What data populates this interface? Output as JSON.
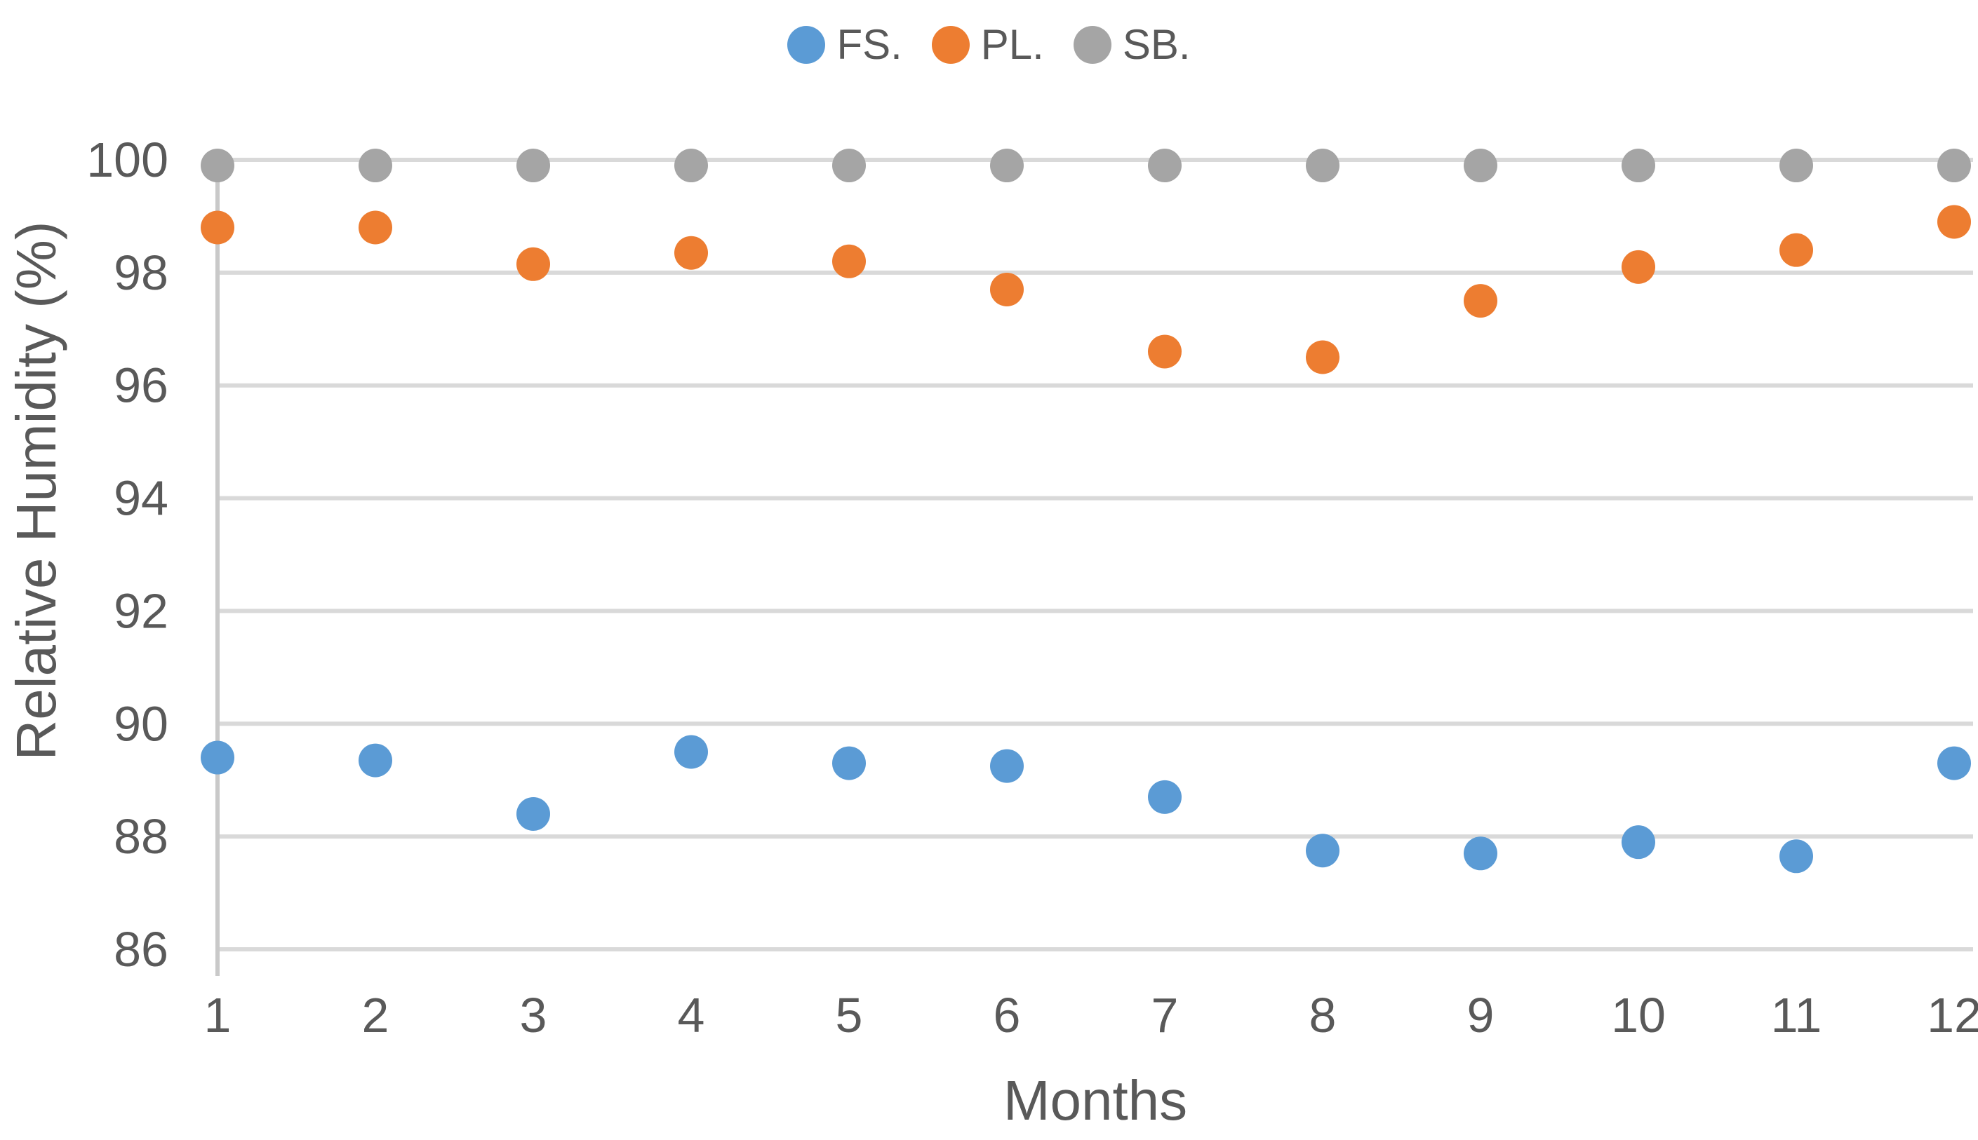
{
  "chart_data": {
    "type": "scatter",
    "title": "",
    "xlabel": "Months",
    "ylabel": "Relative Humidity (%)",
    "x": [
      1,
      2,
      3,
      4,
      5,
      6,
      7,
      8,
      9,
      10,
      11,
      12
    ],
    "series": [
      {
        "name": "FS.",
        "color": "#5B9BD5",
        "values": [
          89.4,
          89.35,
          88.4,
          89.5,
          89.3,
          89.25,
          88.7,
          87.75,
          87.7,
          87.9,
          87.65,
          89.3
        ]
      },
      {
        "name": "PL.",
        "color": "#ED7D31",
        "values": [
          98.8,
          98.8,
          98.15,
          98.35,
          98.2,
          97.7,
          96.6,
          96.5,
          97.5,
          98.1,
          98.4,
          98.9
        ]
      },
      {
        "name": "SB.",
        "color": "#A5A5A5",
        "values": [
          99.9,
          99.9,
          99.9,
          99.9,
          99.9,
          99.9,
          99.9,
          99.9,
          99.9,
          99.9,
          99.9,
          99.9
        ]
      }
    ],
    "ylim": [
      86,
      100
    ],
    "yticks": [
      86,
      88,
      90,
      92,
      94,
      96,
      98,
      100
    ],
    "grid": "horizontal",
    "gridline_color": "#D9D9D9",
    "axis_line_color": "#C9C9C9",
    "text_color": "#595959",
    "legend_position": "top-center",
    "marker": "circle"
  }
}
